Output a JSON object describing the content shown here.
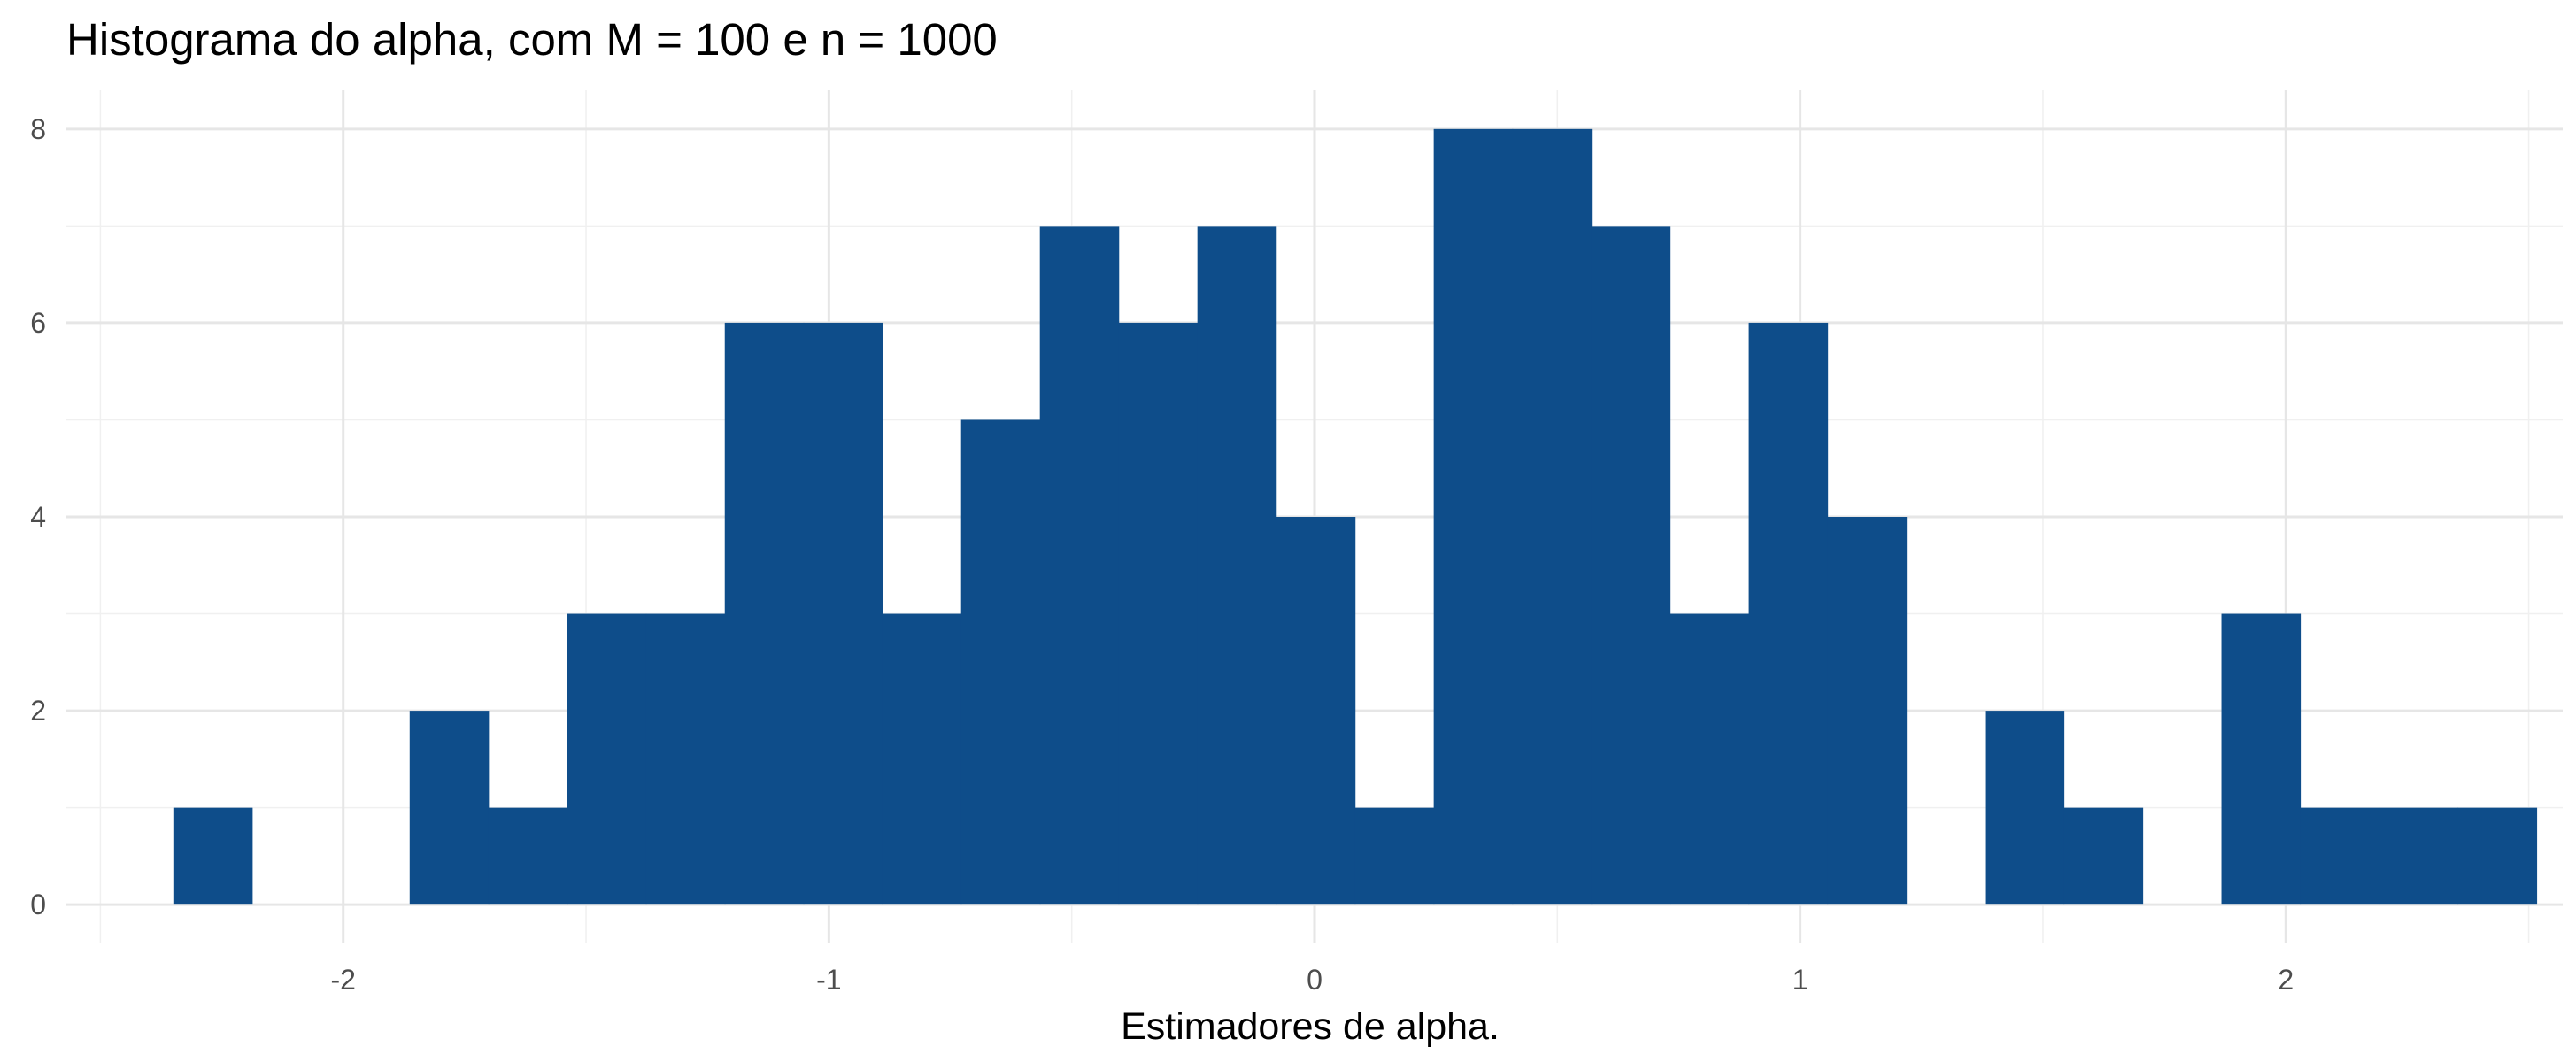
{
  "chart_data": {
    "type": "histogram",
    "title": "Histograma do alpha, com M = 100 e n = 1000",
    "xlabel": "Estimadores de alpha.",
    "ylabel": "",
    "bar_color": "#0E4D8A",
    "grid": true,
    "bin_width": 0.1622,
    "xlim": [
      -2.57,
      2.57
    ],
    "ylim": [
      -0.4,
      8.4
    ],
    "x_ticks": [
      -2,
      -1,
      0,
      1,
      2
    ],
    "y_ticks": [
      0,
      2,
      4,
      6,
      8
    ],
    "bins": [
      {
        "x0": -2.3498,
        "x1": -2.1876,
        "count": 1
      },
      {
        "x0": -2.1876,
        "x1": -2.0254,
        "count": 0
      },
      {
        "x0": -2.0254,
        "x1": -1.8632,
        "count": 0
      },
      {
        "x0": -1.8632,
        "x1": -1.701,
        "count": 2
      },
      {
        "x0": -1.701,
        "x1": -1.5388,
        "count": 1
      },
      {
        "x0": -1.5388,
        "x1": -1.3766,
        "count": 3
      },
      {
        "x0": -1.3766,
        "x1": -1.2144,
        "count": 3
      },
      {
        "x0": -1.2144,
        "x1": -1.0522,
        "count": 6
      },
      {
        "x0": -1.0522,
        "x1": -0.89,
        "count": 6
      },
      {
        "x0": -0.89,
        "x1": -0.7278,
        "count": 3
      },
      {
        "x0": -0.7278,
        "x1": -0.5656,
        "count": 5
      },
      {
        "x0": -0.5656,
        "x1": -0.4034,
        "count": 7
      },
      {
        "x0": -0.4034,
        "x1": -0.2412,
        "count": 6
      },
      {
        "x0": -0.2412,
        "x1": -0.079,
        "count": 7
      },
      {
        "x0": -0.079,
        "x1": 0.0832,
        "count": 4
      },
      {
        "x0": 0.0832,
        "x1": 0.2454,
        "count": 1
      },
      {
        "x0": 0.2454,
        "x1": 0.4076,
        "count": 8
      },
      {
        "x0": 0.4076,
        "x1": 0.5698,
        "count": 8
      },
      {
        "x0": 0.5698,
        "x1": 0.732,
        "count": 7
      },
      {
        "x0": 0.732,
        "x1": 0.8942,
        "count": 3
      },
      {
        "x0": 0.8942,
        "x1": 1.0564,
        "count": 6
      },
      {
        "x0": 1.0564,
        "x1": 1.2186,
        "count": 4
      },
      {
        "x0": 1.2186,
        "x1": 1.3808,
        "count": 0
      },
      {
        "x0": 1.3808,
        "x1": 1.543,
        "count": 2
      },
      {
        "x0": 1.543,
        "x1": 1.7052,
        "count": 1
      },
      {
        "x0": 1.7052,
        "x1": 1.8674,
        "count": 0
      },
      {
        "x0": 1.8674,
        "x1": 2.0296,
        "count": 3
      },
      {
        "x0": 2.0296,
        "x1": 2.1918,
        "count": 1
      },
      {
        "x0": 2.1918,
        "x1": 2.354,
        "count": 1
      },
      {
        "x0": 2.354,
        "x1": 2.5162,
        "count": 1
      }
    ]
  }
}
